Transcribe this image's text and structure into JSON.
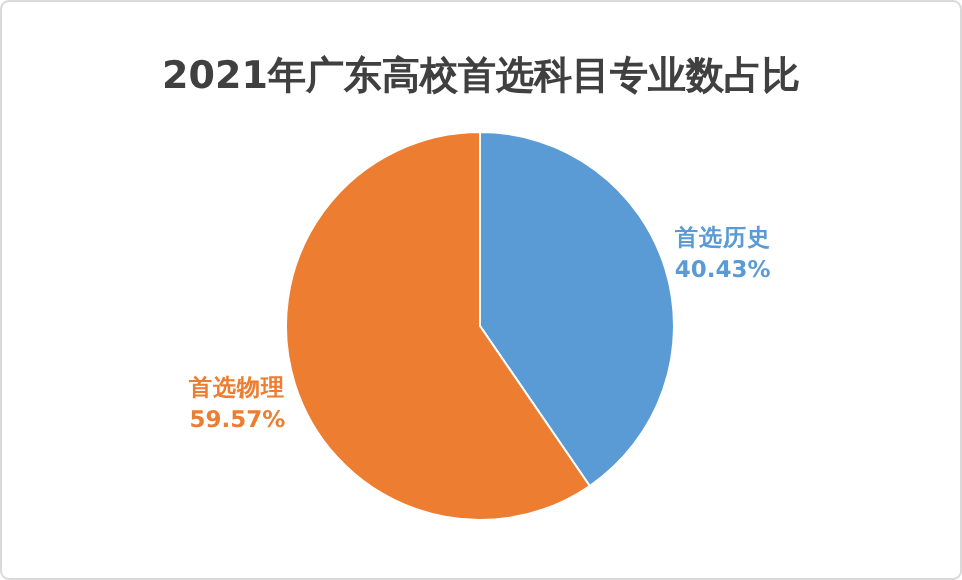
{
  "chart_data": {
    "type": "pie",
    "title": "2021年广东高校首选科目专业数占比",
    "categories": [
      "首选历史",
      "首选物理"
    ],
    "values": [
      40.43,
      59.57
    ],
    "value_labels": [
      "40.43%",
      "59.57%"
    ],
    "colors": [
      "#5b9bd5",
      "#ed7d31"
    ]
  }
}
